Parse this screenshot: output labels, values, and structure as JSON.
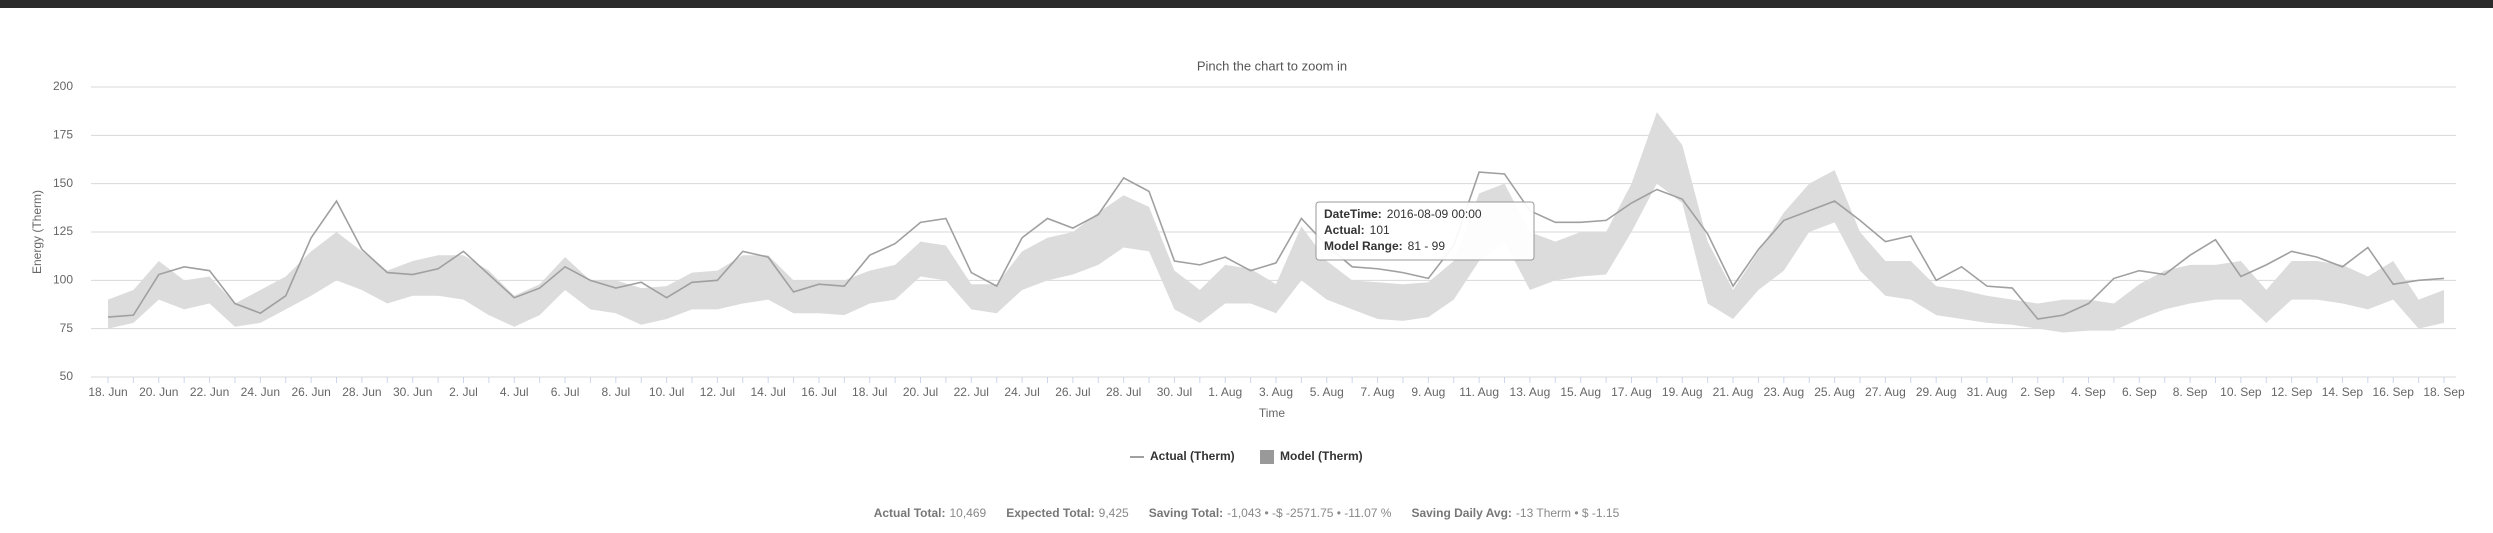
{
  "chart_data": {
    "type": "line-range",
    "subtitle": "Pinch the chart to zoom in",
    "x_label": "Time",
    "y_label": "Energy (Therm)",
    "categories": [
      "18. Jun",
      null,
      "20. Jun",
      null,
      "22. Jun",
      null,
      "24. Jun",
      null,
      "26. Jun",
      null,
      "28. Jun",
      null,
      "30. Jun",
      null,
      "2. Jul",
      null,
      "4. Jul",
      null,
      "6. Jul",
      null,
      "8. Jul",
      null,
      "10. Jul",
      null,
      "12. Jul",
      null,
      "14. Jul",
      null,
      "16. Jul",
      null,
      "18. Jul",
      null,
      "20. Jul",
      null,
      "22. Jul",
      null,
      "24. Jul",
      null,
      "26. Jul",
      null,
      "28. Jul",
      null,
      "30. Jul",
      null,
      "1. Aug",
      null,
      "3. Aug",
      null,
      "5. Aug",
      null,
      "7. Aug",
      null,
      "9. Aug",
      null,
      "11. Aug",
      null,
      "13. Aug",
      null,
      "15. Aug",
      null,
      "17. Aug",
      null,
      "19. Aug",
      null,
      "21. Aug",
      null,
      "23. Aug",
      null,
      "25. Aug",
      null,
      "27. Aug",
      null,
      "29. Aug",
      null,
      "31. Aug",
      null,
      "2. Sep",
      null,
      "4. Sep",
      null,
      "6. Sep",
      null,
      "8. Sep",
      null,
      "10. Sep",
      null,
      "12. Sep",
      null,
      "14. Sep",
      null,
      "16. Sep",
      null,
      "18. Sep"
    ],
    "series": [
      {
        "name": "Actual (Therm)",
        "type": "line",
        "color": "#a0a0a0",
        "values": [
          81,
          82,
          103,
          107,
          105,
          88,
          83,
          92,
          122,
          141,
          116,
          104,
          103,
          106,
          115,
          103,
          91,
          96,
          107,
          100,
          96,
          99,
          91,
          99,
          100,
          115,
          112,
          94,
          98,
          97,
          113,
          119,
          130,
          132,
          104,
          97,
          122,
          132,
          127,
          134,
          153,
          146,
          110,
          108,
          112,
          105,
          109,
          132,
          118,
          107,
          106,
          104,
          101,
          118,
          156,
          155,
          136,
          130,
          130,
          131,
          140,
          147,
          142,
          124,
          97,
          116,
          131,
          136,
          141,
          131,
          120,
          123,
          100,
          107,
          97,
          96,
          80,
          82,
          88,
          101,
          105,
          103,
          113,
          121,
          102,
          108,
          115,
          112,
          107,
          117,
          98,
          100,
          101
        ]
      },
      {
        "name": "Model (Therm)",
        "type": "arearange",
        "color": "#dcdcdc",
        "low": [
          75,
          78,
          90,
          85,
          88,
          76,
          78,
          85,
          92,
          100,
          95,
          88,
          92,
          92,
          90,
          82,
          76,
          82,
          95,
          85,
          83,
          77,
          80,
          85,
          85,
          88,
          90,
          83,
          83,
          82,
          88,
          90,
          102,
          100,
          85,
          83,
          95,
          100,
          103,
          108,
          117,
          115,
          85,
          78,
          88,
          88,
          83,
          100,
          90,
          85,
          80,
          79,
          81,
          90,
          110,
          120,
          95,
          100,
          102,
          103,
          125,
          150,
          140,
          88,
          80,
          95,
          105,
          125,
          130,
          105,
          92,
          90,
          82,
          80,
          78,
          77,
          75,
          73,
          74,
          74,
          80,
          85,
          88,
          90,
          90,
          78,
          90,
          90,
          88,
          85,
          90,
          75,
          78
        ],
        "high": [
          90,
          95,
          110,
          100,
          102,
          88,
          95,
          102,
          115,
          125,
          115,
          105,
          110,
          113,
          113,
          105,
          92,
          98,
          112,
          100,
          100,
          96,
          97,
          104,
          105,
          113,
          113,
          100,
          100,
          100,
          105,
          108,
          120,
          118,
          98,
          98,
          115,
          122,
          125,
          135,
          144,
          138,
          105,
          95,
          108,
          106,
          98,
          128,
          110,
          100,
          99,
          98,
          99,
          110,
          145,
          150,
          125,
          120,
          125,
          125,
          150,
          187,
          170,
          120,
          95,
          115,
          135,
          150,
          157,
          125,
          110,
          110,
          97,
          95,
          92,
          90,
          88,
          90,
          90,
          88,
          98,
          105,
          108,
          108,
          110,
          95,
          110,
          110,
          108,
          102,
          110,
          90,
          95
        ]
      }
    ],
    "ylim": [
      50,
      200
    ],
    "yticks": [
      50,
      75,
      100,
      125,
      150,
      175,
      200
    ],
    "grid": true,
    "tooltip": {
      "date_label": "DateTime:",
      "date": "2016-08-09 00:00",
      "actual_label": "Actual:",
      "actual": "101",
      "range_label": "Model Range:",
      "range": "81 - 99"
    },
    "footer": [
      {
        "label": "Actual Total:",
        "value": "10,469"
      },
      {
        "label": "Expected Total:",
        "value": "9,425"
      },
      {
        "label": "Saving Total:",
        "value": "-1,043 • -$ -2571.75 • -11.07 %"
      },
      {
        "label": "Saving Daily Avg:",
        "value": "-13 Therm • $ -1.15"
      }
    ]
  }
}
